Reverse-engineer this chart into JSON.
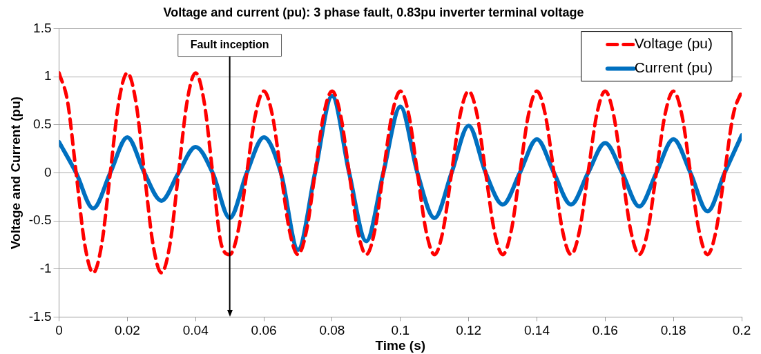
{
  "chart_data": {
    "type": "line",
    "title": "Voltage and current (pu): 3 phase fault, 0.83pu inverter terminal voltage",
    "xlabel": "Time (s)",
    "ylabel": "Voltage and Current (pu)",
    "xlim": [
      0,
      0.2
    ],
    "xticks": [
      0,
      0.02,
      0.04,
      0.06,
      0.08,
      0.1,
      0.12,
      0.14,
      0.16,
      0.18,
      0.2
    ],
    "ylim": [
      -1.5,
      1.5
    ],
    "yticks": [
      -1.5,
      -1,
      -0.5,
      0,
      0.5,
      1,
      1.5
    ],
    "grid": "y",
    "legend": "top right",
    "marker": "none",
    "ref_lines": [
      {
        "axis": "x",
        "value": 0.05,
        "label": "Fault inception",
        "color": "#000000"
      }
    ],
    "series": [
      {
        "name": "Voltage (pu)",
        "color": "#ff0000",
        "line_style": "dashed",
        "x": [
          0,
          0.0025,
          0.005,
          0.0075,
          0.01,
          0.0125,
          0.015,
          0.0175,
          0.02,
          0.0225,
          0.025,
          0.0275,
          0.03,
          0.0325,
          0.035,
          0.0375,
          0.04,
          0.0425,
          0.045,
          0.0475,
          0.05,
          0.0525,
          0.055,
          0.0575,
          0.06,
          0.0625,
          0.065,
          0.0675,
          0.07,
          0.0725,
          0.075,
          0.0775,
          0.08,
          0.0825,
          0.085,
          0.0875,
          0.09,
          0.0925,
          0.095,
          0.0975,
          0.1,
          0.1025,
          0.105,
          0.1075,
          0.11,
          0.1125,
          0.115,
          0.1175,
          0.12,
          0.1225,
          0.125,
          0.1275,
          0.13,
          0.1325,
          0.135,
          0.1375,
          0.14,
          0.1425,
          0.145,
          0.1475,
          0.15,
          0.1525,
          0.155,
          0.1575,
          0.16,
          0.1625,
          0.165,
          0.1675,
          0.17,
          0.1725,
          0.175,
          0.1775,
          0.18,
          0.1825,
          0.185,
          0.1875,
          0.19,
          0.1925,
          0.195,
          0.1975,
          0.2
        ],
        "values": [
          1.04,
          0.74,
          0,
          -0.74,
          -1.04,
          -0.74,
          0,
          0.74,
          1.04,
          0.74,
          0,
          -0.74,
          -1.04,
          -0.74,
          0,
          0.74,
          1.04,
          0.74,
          0,
          -0.74,
          -0.85,
          -0.6,
          0,
          0.6,
          0.85,
          0.6,
          0,
          -0.6,
          -0.85,
          -0.6,
          0,
          0.6,
          0.85,
          0.6,
          0,
          -0.6,
          -0.85,
          -0.6,
          0,
          0.6,
          0.85,
          0.6,
          0,
          -0.6,
          -0.85,
          -0.6,
          0,
          0.6,
          0.85,
          0.6,
          0,
          -0.6,
          -0.85,
          -0.6,
          0,
          0.6,
          0.85,
          0.6,
          0,
          -0.6,
          -0.85,
          -0.6,
          0,
          0.6,
          0.85,
          0.6,
          0,
          -0.6,
          -0.85,
          -0.6,
          0,
          0.6,
          0.85,
          0.6,
          0,
          -0.6,
          -0.85,
          -0.6,
          0,
          0.6,
          0.85
        ]
      },
      {
        "name": "Current (pu)",
        "color": "#0070c0",
        "line_style": "solid",
        "x": [
          0,
          0.005,
          0.01,
          0.015,
          0.02,
          0.025,
          0.03,
          0.035,
          0.04,
          0.045,
          0.05,
          0.055,
          0.06,
          0.065,
          0.07,
          0.075,
          0.08,
          0.085,
          0.09,
          0.095,
          0.1,
          0.105,
          0.11,
          0.115,
          0.12,
          0.125,
          0.13,
          0.135,
          0.14,
          0.145,
          0.15,
          0.155,
          0.16,
          0.165,
          0.17,
          0.175,
          0.18,
          0.185,
          0.19,
          0.195,
          0.2
        ],
        "values": [
          0.32,
          0,
          -0.37,
          0,
          0.37,
          0,
          -0.29,
          0,
          0.27,
          0,
          -0.47,
          0,
          0.37,
          0,
          -0.8,
          0,
          0.8,
          0,
          -0.71,
          0,
          0.69,
          0,
          -0.47,
          0,
          0.49,
          0,
          -0.33,
          0,
          0.35,
          0,
          -0.33,
          0,
          0.31,
          0,
          -0.35,
          0,
          0.35,
          0,
          -0.4,
          0,
          0.39
        ]
      }
    ]
  }
}
